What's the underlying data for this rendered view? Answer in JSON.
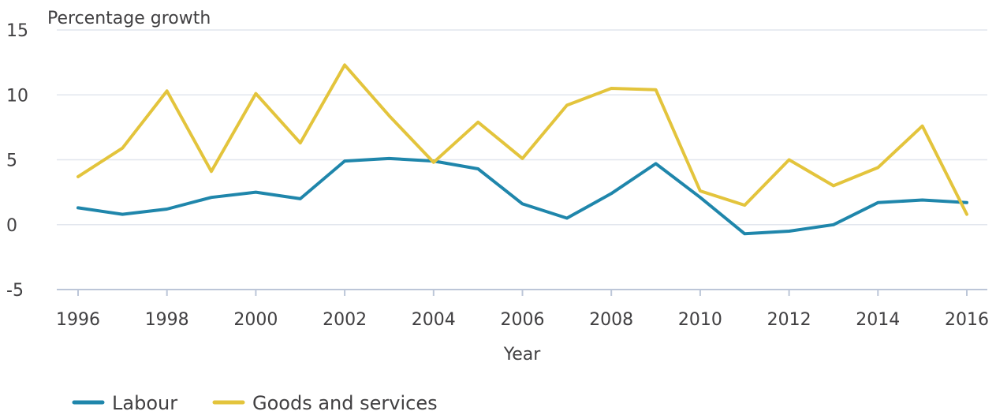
{
  "chart_data": {
    "type": "line",
    "ylabel": "Percentage growth",
    "xlabel": "Year",
    "x": [
      1996,
      1997,
      1998,
      1999,
      2000,
      2001,
      2002,
      2003,
      2004,
      2005,
      2006,
      2007,
      2008,
      2009,
      2010,
      2011,
      2012,
      2013,
      2014,
      2015,
      2016
    ],
    "xticks": [
      1996,
      1998,
      2000,
      2002,
      2004,
      2006,
      2008,
      2010,
      2012,
      2014,
      2016
    ],
    "yticks": [
      -5,
      0,
      5,
      10,
      15
    ],
    "ylim": [
      -5,
      15
    ],
    "grid": "horizontal",
    "legend": "bottom-left",
    "series": [
      {
        "name": "Labour",
        "color": "#1f86ab",
        "values": [
          1.3,
          0.8,
          1.2,
          2.1,
          2.5,
          2.0,
          4.9,
          5.1,
          4.9,
          4.3,
          1.6,
          0.5,
          2.4,
          4.7,
          2.1,
          -0.7,
          -0.5,
          0.0,
          1.7,
          1.9,
          1.7
        ]
      },
      {
        "name": "Goods and services",
        "color": "#e3c43c",
        "values": [
          3.7,
          5.9,
          10.3,
          4.1,
          10.1,
          6.3,
          12.3,
          8.4,
          4.8,
          7.9,
          5.1,
          9.2,
          10.5,
          10.4,
          2.6,
          1.5,
          5.0,
          3.0,
          4.4,
          7.6,
          0.8
        ]
      }
    ]
  }
}
